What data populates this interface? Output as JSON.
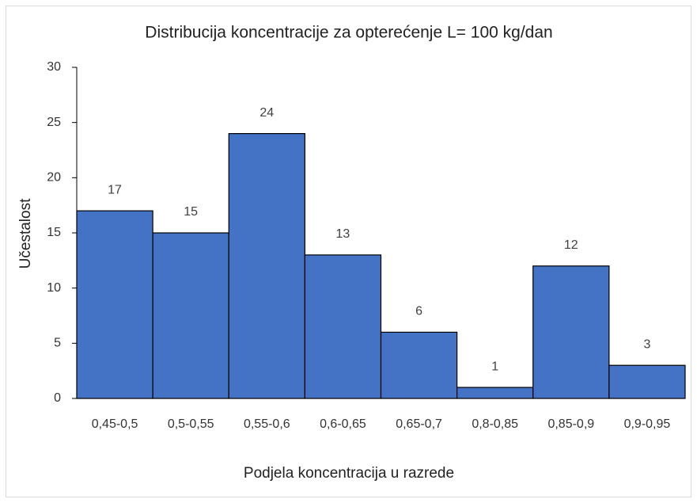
{
  "chart_data": {
    "type": "bar",
    "title": "Distribucija koncentracije za opterećenje L= 100 kg/dan",
    "x_label": "Podjela koncentracija u razrede",
    "y_label": "Učestalost",
    "categories": [
      "0,45-0,5",
      "0,5-0,55",
      "0,55-0,6",
      "0,6-0,65",
      "0,65-0,7",
      "0,8-0,85",
      "0,85-0,9",
      "0,9-0,95"
    ],
    "values": [
      17,
      15,
      24,
      13,
      6,
      1,
      12,
      3
    ],
    "color": "#4472c4",
    "ylim": [
      0,
      30
    ],
    "yticks": [
      0,
      5,
      10,
      15,
      20,
      25,
      30
    ],
    "grid": false
  }
}
